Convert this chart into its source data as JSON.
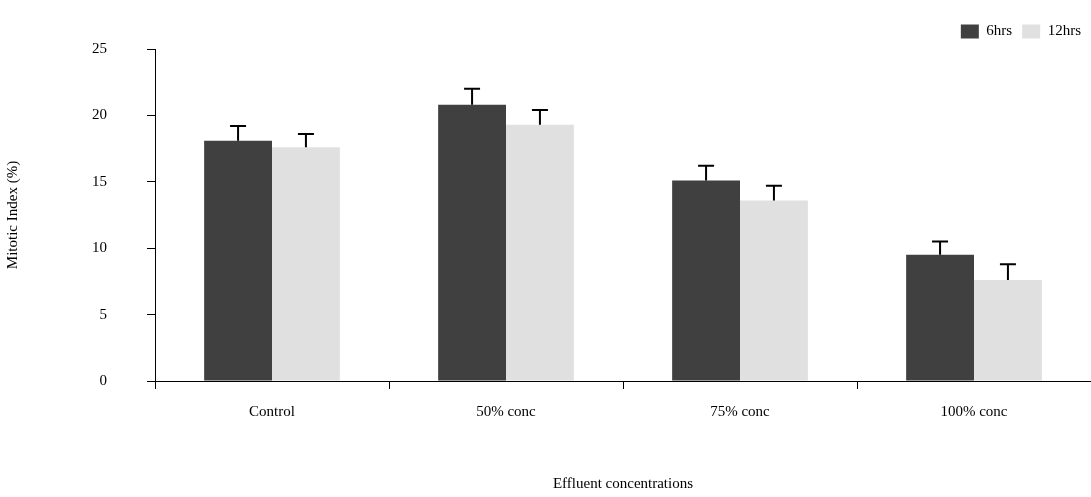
{
  "chart_data": {
    "type": "bar",
    "xlabel": "Effluent concentrations",
    "ylabel": "Mitotic Index (%)",
    "categories": [
      "Control",
      "50% conc",
      "75% conc",
      "100% conc"
    ],
    "series": [
      {
        "name": "6hrs",
        "color": "#404040",
        "values": [
          18.1,
          20.8,
          15.1,
          9.5
        ],
        "errors": [
          [
            18.1,
            19.2
          ],
          [
            20.8,
            22.0
          ],
          [
            15.1,
            16.2
          ],
          [
            9.5,
            10.5
          ]
        ]
      },
      {
        "name": "12hrs",
        "color": "#e0e0e0",
        "values": [
          17.6,
          19.3,
          13.6,
          7.6
        ],
        "errors": [
          [
            17.6,
            18.6
          ],
          [
            19.3,
            20.4
          ],
          [
            13.6,
            14.7
          ],
          [
            7.6,
            8.8
          ]
        ]
      }
    ],
    "ylim": [
      0,
      25
    ],
    "yticks": [
      0,
      5,
      10,
      15,
      20,
      25
    ],
    "grid": false,
    "legend": "top right"
  }
}
